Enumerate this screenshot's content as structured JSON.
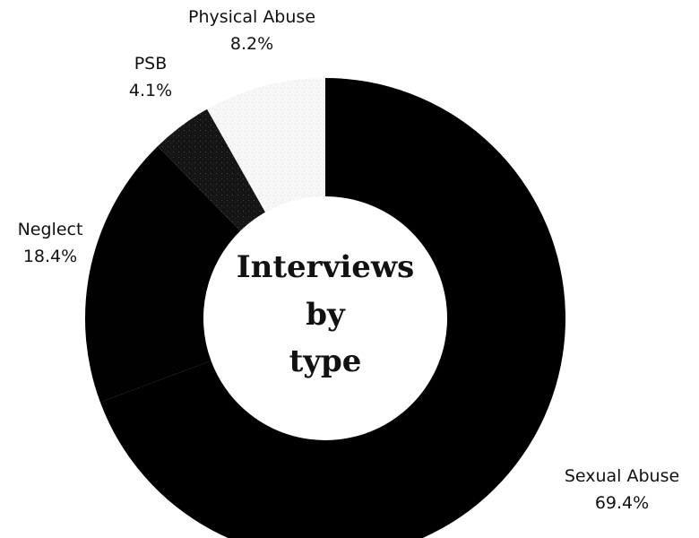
{
  "chart_data": {
    "type": "pie",
    "variant": "donut",
    "center_title_lines": [
      "Interviews",
      "by",
      "type"
    ],
    "slices": [
      {
        "label": "Sexual Abuse",
        "value": 69.4,
        "value_text": "69.4%",
        "color": "#000000"
      },
      {
        "label": "Neglect",
        "value": 18.4,
        "value_text": "18.4%",
        "color": "#000000"
      },
      {
        "label": "PSB",
        "value": 4.1,
        "value_text": "4.1%",
        "color": "#141414"
      },
      {
        "label": "Physical Abuse",
        "value": 8.2,
        "value_text": "8.2%",
        "color": "#f4f4f4"
      }
    ]
  }
}
